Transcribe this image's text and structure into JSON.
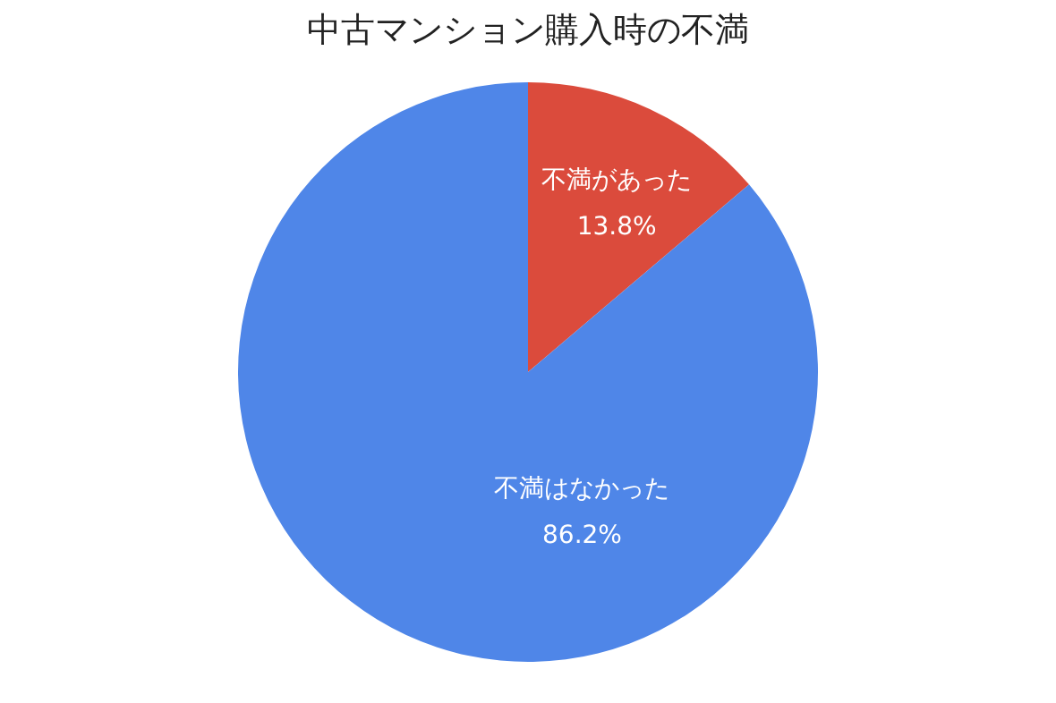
{
  "chart_data": {
    "type": "pie",
    "title": "中古マンション購入時の不満",
    "categories": [
      "不満があった",
      "不満はなかった"
    ],
    "values": [
      13.8,
      86.2
    ],
    "colors": [
      "#db4b3c",
      "#4f86e8"
    ],
    "value_labels": [
      "13.8%",
      "86.2%"
    ],
    "legend": false
  }
}
